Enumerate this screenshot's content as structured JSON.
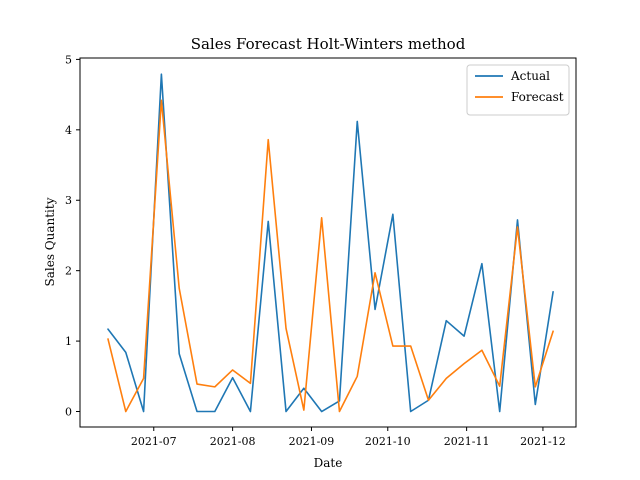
{
  "chart_data": {
    "type": "line",
    "title": "Sales Forecast Holt-Winters method",
    "xlabel": "Date",
    "ylabel": "Sales Quantity",
    "xlim": [
      "2021-06-02",
      "2021-12-14"
    ],
    "ylim": [
      -0.22,
      5.02
    ],
    "grid": false,
    "legend_position": "top-right",
    "x_ticks": [
      {
        "date": "2021-07-01",
        "label": "2021-07"
      },
      {
        "date": "2021-08-01",
        "label": "2021-08"
      },
      {
        "date": "2021-09-01",
        "label": "2021-09"
      },
      {
        "date": "2021-10-01",
        "label": "2021-10"
      },
      {
        "date": "2021-11-01",
        "label": "2021-11"
      },
      {
        "date": "2021-12-01",
        "label": "2021-12"
      }
    ],
    "y_ticks": [
      0,
      1,
      2,
      3,
      4,
      5
    ],
    "x": [
      "2021-06-13",
      "2021-06-20",
      "2021-06-27",
      "2021-07-04",
      "2021-07-11",
      "2021-07-18",
      "2021-07-25",
      "2021-08-01",
      "2021-08-08",
      "2021-08-15",
      "2021-08-22",
      "2021-08-29",
      "2021-09-05",
      "2021-09-12",
      "2021-09-19",
      "2021-09-26",
      "2021-10-03",
      "2021-10-10",
      "2021-10-17",
      "2021-10-24",
      "2021-10-31",
      "2021-11-07",
      "2021-11-14",
      "2021-11-21",
      "2021-11-28",
      "2021-12-05"
    ],
    "series": [
      {
        "name": "Actual",
        "color": "#1f77b4",
        "values": [
          1.17,
          0.84,
          0.0,
          4.79,
          0.82,
          0.0,
          0.0,
          0.48,
          0.0,
          2.7,
          0.0,
          0.33,
          0.0,
          0.15,
          4.12,
          1.45,
          2.8,
          0.0,
          0.16,
          1.29,
          1.07,
          2.1,
          0.0,
          2.72,
          0.1,
          1.7
        ]
      },
      {
        "name": "Forecast",
        "color": "#ff7f0e",
        "values": [
          1.03,
          0.0,
          0.47,
          4.42,
          1.75,
          0.39,
          0.35,
          0.59,
          0.4,
          3.86,
          1.18,
          0.02,
          2.75,
          0.0,
          0.5,
          1.97,
          0.93,
          0.93,
          0.16,
          0.47,
          0.68,
          0.87,
          0.36,
          2.62,
          0.35,
          1.14
        ]
      }
    ]
  }
}
